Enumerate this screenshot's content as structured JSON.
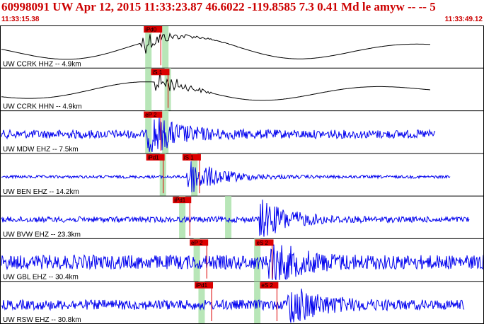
{
  "header": {
    "title": "60998091 UW Apr 12, 2015 11:33:23.87    46.6022 -119.8585  7.3 0.41 Md le amyw -- --   5",
    "time_start": "11:33:15.38",
    "time_end": "11:33:49.12"
  },
  "colors": {
    "header_text": "#cc0000",
    "trace_broadband": "#000000",
    "trace_short_period": "#0000ee",
    "pick_box": "#dd0000",
    "pick_window": "#b8e6b8",
    "separator": "#000000"
  },
  "traces": [
    {
      "label": "UW CCRK HHZ -- 4.9km",
      "color": "#000000",
      "type": "smooth",
      "amp": 18,
      "cutoff": 0.89,
      "windows": [
        0.3,
        0.335
      ],
      "picks": [
        {
          "label": "iPd0",
          "pos": 0.3
        }
      ],
      "event": 0.3,
      "tail": 0.44
    },
    {
      "label": "UW CCRK HHN -- 4.9km",
      "color": "#000000",
      "type": "smooth",
      "amp": 14,
      "cutoff": 0.89,
      "windows": [
        0.3,
        0.34
      ],
      "picks": [
        {
          "label": "iS 1",
          "pos": 0.315
        }
      ],
      "event": 0.33,
      "tail": 0.38
    },
    {
      "label": "UW MDW EHZ -- 7.5km",
      "color": "#0000ee",
      "type": "noisy",
      "amp": 6,
      "cutoff": 0.9,
      "windows": [
        0.3,
        0.335
      ],
      "picks": [
        {
          "label": "eP 2",
          "pos": 0.3
        }
      ],
      "event": 0.31,
      "tail": 0.42
    },
    {
      "label": "UW BEN EHZ -- 14.2km",
      "color": "#0000ee",
      "type": "quiet",
      "amp": 2,
      "cutoff": 0.93,
      "windows": [
        0.33,
        0.395
      ],
      "picks": [
        {
          "label": "iPd1",
          "pos": 0.305
        },
        {
          "label": "iS 1",
          "pos": 0.38
        }
      ],
      "event": 0.39,
      "tail": 0.5
    },
    {
      "label": "UW BVW EHZ -- 23.3km",
      "color": "#0000ee",
      "type": "noisy",
      "amp": 4,
      "cutoff": 0.97,
      "windows": [
        0.37,
        0.465
      ],
      "picks": [
        {
          "label": "iPd1",
          "pos": 0.36
        }
      ],
      "event": 0.54,
      "tail": 0.62
    },
    {
      "label": "UW GBL EHZ -- 30.4km",
      "color": "#0000ee",
      "type": "noisy",
      "amp": 10,
      "cutoff": 1.0,
      "windows": [
        0.4,
        0.525
      ],
      "picks": [
        {
          "label": "eP 2",
          "pos": 0.395
        },
        {
          "label": "eS 2",
          "pos": 0.53
        }
      ],
      "event": 0.56,
      "tail": 0.62
    },
    {
      "label": "UW RSW EHZ -- 30.8km",
      "color": "#0000ee",
      "type": "noisy",
      "amp": 7,
      "cutoff": 0.96,
      "windows": [
        0.41,
        0.525
      ],
      "picks": [
        {
          "label": "iPd1",
          "pos": 0.405
        },
        {
          "label": "eS 2",
          "pos": 0.54
        }
      ],
      "event": 0.6,
      "tail": 0.66
    }
  ]
}
